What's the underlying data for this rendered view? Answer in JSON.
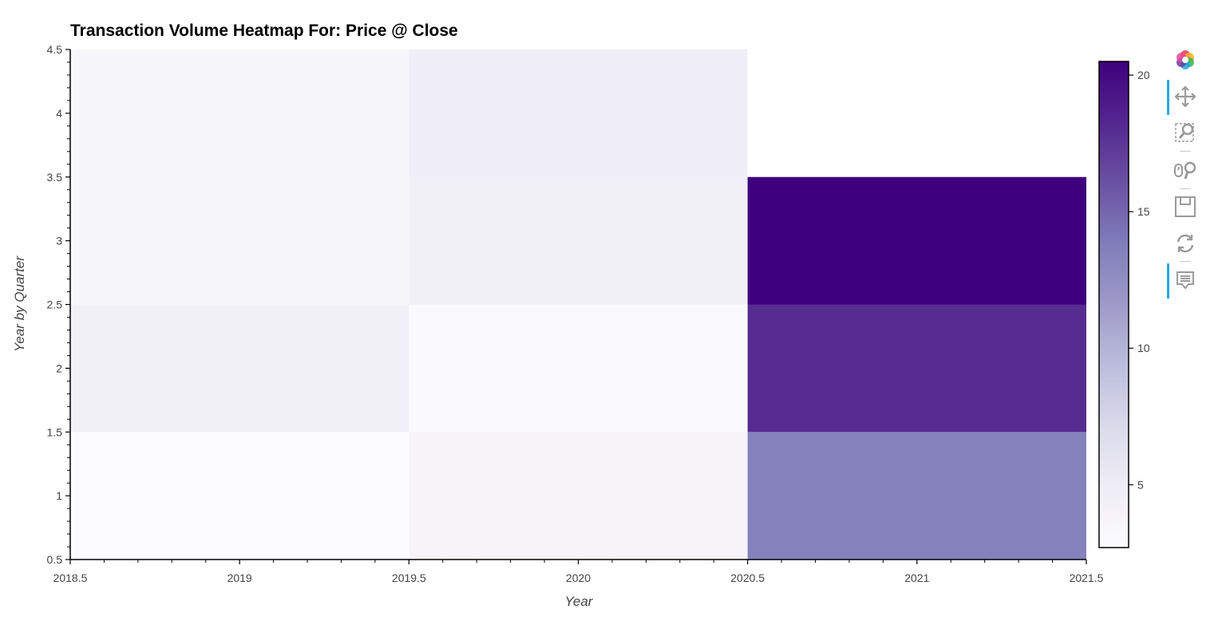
{
  "chart_data": {
    "type": "heatmap",
    "title": "Transaction Volume Heatmap For: Price @ Close",
    "xlabel": "Year",
    "ylabel": "Year by Quarter",
    "x_categories": [
      2019,
      2020,
      2021
    ],
    "y_categories": [
      1,
      2,
      3,
      4
    ],
    "xlim": [
      2018.5,
      2021.5
    ],
    "ylim": [
      0.5,
      4.5
    ],
    "x_ticks": [
      "2018.5",
      "2019",
      "2019.5",
      "2020",
      "2020.5",
      "2021",
      "2021.5"
    ],
    "y_ticks": [
      "0.5",
      "1",
      "1.5",
      "2",
      "2.5",
      "3",
      "3.5",
      "4",
      "4.5"
    ],
    "cells": [
      {
        "x": 2019,
        "y": 1,
        "value": 2.7
      },
      {
        "x": 2019,
        "y": 2,
        "value": 4.5
      },
      {
        "x": 2019,
        "y": 3,
        "value": 3.5
      },
      {
        "x": 2019,
        "y": 4,
        "value": 3.5
      },
      {
        "x": 2020,
        "y": 1,
        "value": 3.8
      },
      {
        "x": 2020,
        "y": 2,
        "value": 3.0
      },
      {
        "x": 2020,
        "y": 3,
        "value": 4.5
      },
      {
        "x": 2020,
        "y": 4,
        "value": 4.7
      },
      {
        "x": 2021,
        "y": 1,
        "value": 13.5
      },
      {
        "x": 2021,
        "y": 2,
        "value": 18.0
      },
      {
        "x": 2021,
        "y": 3,
        "value": 20.5
      },
      {
        "x": 2021,
        "y": null,
        "value": null
      }
    ],
    "colorbar": {
      "min": 2.7,
      "max": 20.5,
      "ticks": [
        "5",
        "10",
        "15",
        "20"
      ],
      "tick_values": [
        5,
        10,
        15,
        20
      ],
      "palette": [
        "#fcfbfd",
        "#efedf5",
        "#dadaeb",
        "#bcbddc",
        "#9e9ac8",
        "#807dba",
        "#6a51a3",
        "#54278f",
        "#3f007d"
      ]
    },
    "grid": false
  },
  "toolbar": {
    "logo_icon": "bokeh-logo-icon",
    "tools": [
      {
        "name": "pan-icon",
        "active": true
      },
      {
        "name": "box-zoom-icon",
        "active": false
      },
      {
        "name": "wheel-zoom-icon",
        "active": false
      },
      {
        "name": "save-icon",
        "active": false
      },
      {
        "name": "reset-icon",
        "active": false
      },
      {
        "name": "hover-icon",
        "active": true
      }
    ]
  }
}
